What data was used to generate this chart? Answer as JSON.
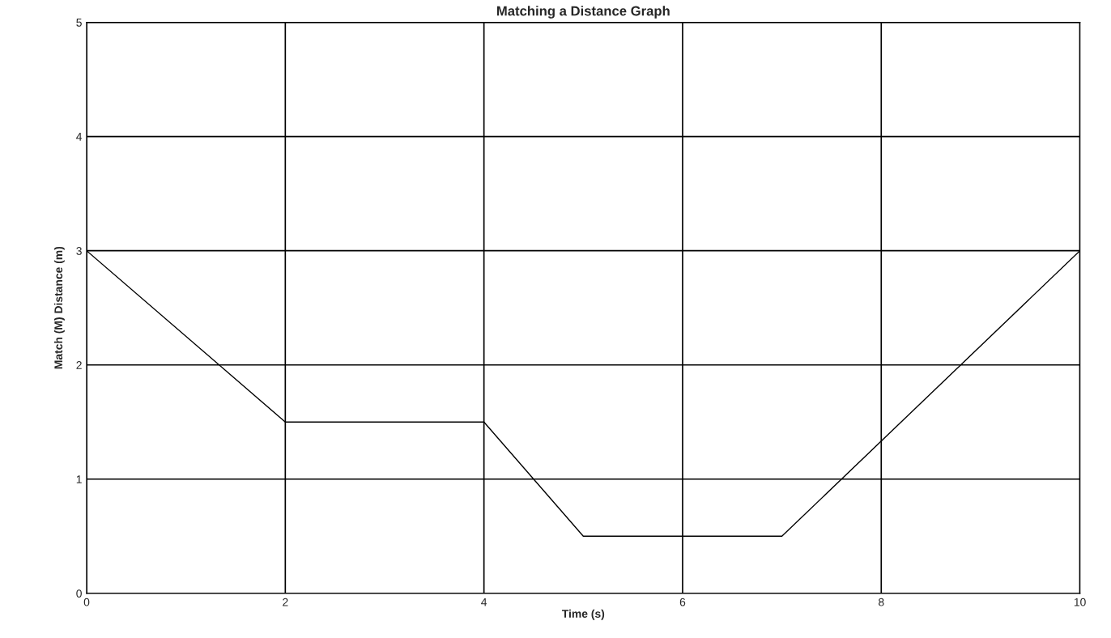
{
  "chart_data": {
    "type": "line",
    "title": "Matching a Distance Graph",
    "xlabel": "Time (s)",
    "ylabel": "Match (M) Distance (m)",
    "x": [
      0,
      2,
      4,
      5,
      7,
      10
    ],
    "series": [
      {
        "color": "#000000",
        "values": [
          3,
          1.5,
          1.5,
          0.5,
          0.5,
          3
        ]
      }
    ],
    "xlim": [
      0,
      10
    ],
    "xticks": [
      0,
      2,
      4,
      6,
      8,
      10
    ],
    "ylim": [
      0,
      5
    ],
    "yticks": [
      0,
      1,
      2,
      3,
      4,
      5
    ],
    "grid": true,
    "legend": false,
    "marker": "none",
    "line_style": "solid"
  }
}
